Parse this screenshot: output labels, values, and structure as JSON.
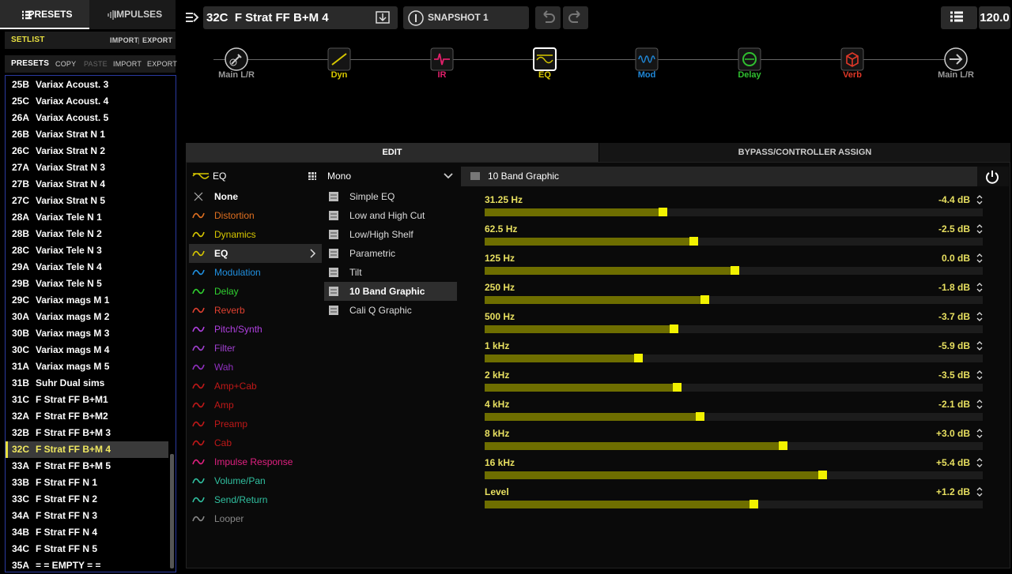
{
  "left": {
    "tabs": [
      "PRESETS",
      "IMPULSES"
    ],
    "setlist": {
      "label": "SETLIST",
      "import": "IMPORT",
      "export": "EXPORT"
    },
    "presets": {
      "label": "PRESETS",
      "copy": "COPY",
      "paste": "PASTE",
      "import": "IMPORT",
      "export": "EXPORT"
    },
    "list": [
      {
        "slot": "25B",
        "name": "Variax Acoust. 3"
      },
      {
        "slot": "25C",
        "name": "Variax Acoust. 4"
      },
      {
        "slot": "26A",
        "name": "Variax Acoust. 5"
      },
      {
        "slot": "26B",
        "name": "Variax Strat N 1"
      },
      {
        "slot": "26C",
        "name": "Variax Strat N 2"
      },
      {
        "slot": "27A",
        "name": "Variax Strat N 3"
      },
      {
        "slot": "27B",
        "name": "Variax Strat N 4"
      },
      {
        "slot": "27C",
        "name": "Variax Strat N 5"
      },
      {
        "slot": "28A",
        "name": "Variax Tele N 1"
      },
      {
        "slot": "28B",
        "name": "Variax Tele N 2"
      },
      {
        "slot": "28C",
        "name": "Variax Tele N 3"
      },
      {
        "slot": "29A",
        "name": "Variax Tele N 4"
      },
      {
        "slot": "29B",
        "name": "Variax Tele N 5"
      },
      {
        "slot": "29C",
        "name": "Variax mags M 1"
      },
      {
        "slot": "30A",
        "name": "Variax mags M 2"
      },
      {
        "slot": "30B",
        "name": "Variax mags M 3"
      },
      {
        "slot": "30C",
        "name": "Variax mags M 4"
      },
      {
        "slot": "31A",
        "name": "Variax mags M 5"
      },
      {
        "slot": "31B",
        "name": "Suhr Dual sims"
      },
      {
        "slot": "31C",
        "name": "F Strat FF B+M1"
      },
      {
        "slot": "32A",
        "name": "F Strat FF B+M2"
      },
      {
        "slot": "32B",
        "name": "F Strat FF B+M 3"
      },
      {
        "slot": "32C",
        "name": "F Strat FF B+M 4"
      },
      {
        "slot": "33A",
        "name": "F Strat FF B+M 5"
      },
      {
        "slot": "33B",
        "name": "F Strat FF N 1"
      },
      {
        "slot": "33C",
        "name": "F Strat FF N 2"
      },
      {
        "slot": "34A",
        "name": "F Strat FF N 3"
      },
      {
        "slot": "34B",
        "name": "F Strat FF N 4"
      },
      {
        "slot": "34C",
        "name": "F Strat FF N 5"
      },
      {
        "slot": "35A",
        "name": "= = EMPTY = ="
      }
    ]
  },
  "topbar": {
    "preset": "32C  F Strat FF B+M 4",
    "snapshot": "SNAPSHOT 1",
    "tempo": "120.0"
  },
  "chain": [
    "Main L/R",
    "Dyn",
    "IR",
    "EQ",
    "Mod",
    "Delay",
    "Verb",
    "Main L/R"
  ],
  "tabs": [
    "EDIT",
    "BYPASS/CONTROLLER ASSIGN"
  ],
  "category_header": "EQ",
  "categories": [
    "None",
    "Distortion",
    "Dynamics",
    "EQ",
    "Modulation",
    "Delay",
    "Reverb",
    "Pitch/Synth",
    "Filter",
    "Wah",
    "Amp+Cab",
    "Amp",
    "Preamp",
    "Cab",
    "Impulse Response",
    "Volume/Pan",
    "Send/Return",
    "Looper"
  ],
  "model_header": "Mono",
  "models": [
    "Simple EQ",
    "Low and High Cut",
    "Low/High Shelf",
    "Parametric",
    "Tilt",
    "10 Band Graphic",
    "Cali Q Graphic"
  ],
  "block_title": "10 Band Graphic",
  "params": [
    {
      "label": "31.25 Hz",
      "value": "-4.4 dB"
    },
    {
      "label": "62.5 Hz",
      "value": "-2.5 dB"
    },
    {
      "label": "125 Hz",
      "value": "0.0 dB"
    },
    {
      "label": "250 Hz",
      "value": "-1.8 dB"
    },
    {
      "label": "500 Hz",
      "value": "-3.7 dB"
    },
    {
      "label": "1 kHz",
      "value": "-5.9 dB"
    },
    {
      "label": "2 kHz",
      "value": "-3.5 dB"
    },
    {
      "label": "4 kHz",
      "value": "-2.1 dB"
    },
    {
      "label": "8 kHz",
      "value": "+3.0 dB"
    },
    {
      "label": "16 kHz",
      "value": "+5.4 dB"
    },
    {
      "label": "Level",
      "value": "+1.2 dB"
    }
  ]
}
